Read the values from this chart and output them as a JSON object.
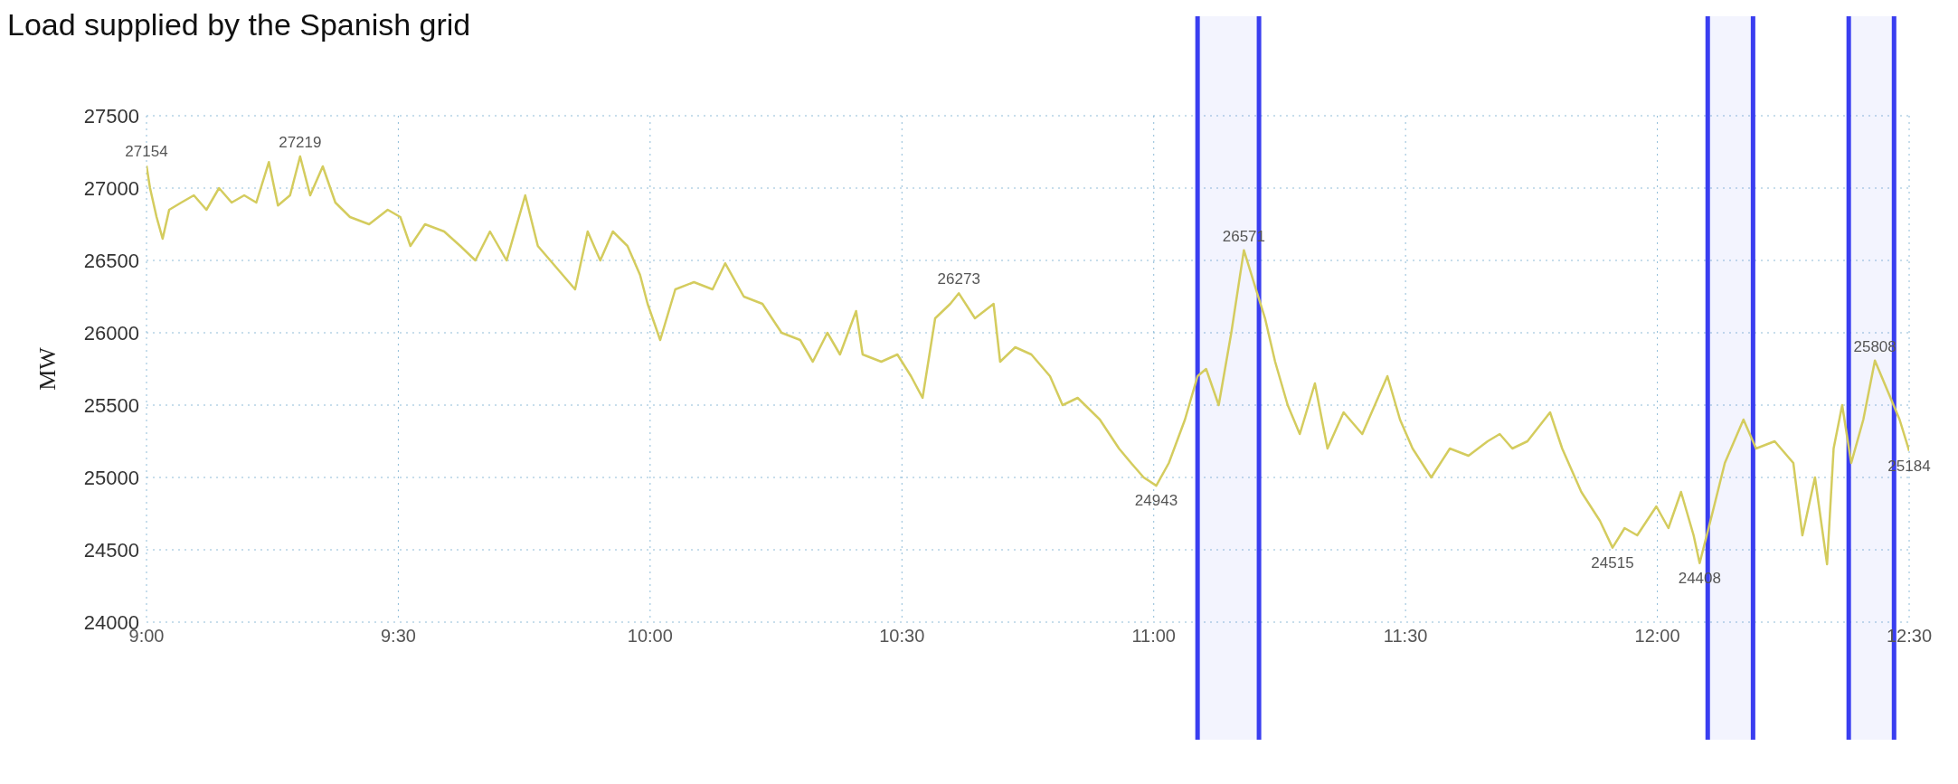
{
  "chart_data": {
    "type": "line",
    "title": "Load supplied by the Spanish grid",
    "ylabel": "MW",
    "x": [
      9.0,
      9.007,
      9.02,
      9.032,
      9.045,
      9.069,
      9.094,
      9.119,
      9.144,
      9.169,
      9.194,
      9.218,
      9.243,
      9.261,
      9.285,
      9.305,
      9.325,
      9.35,
      9.375,
      9.404,
      9.442,
      9.479,
      9.504,
      9.524,
      9.553,
      9.591,
      9.623,
      9.653,
      9.682,
      9.715,
      9.752,
      9.777,
      9.814,
      9.851,
      9.876,
      9.901,
      9.926,
      9.955,
      9.98,
      9.995,
      10.02,
      10.05,
      10.087,
      10.124,
      10.149,
      10.186,
      10.223,
      10.261,
      10.298,
      10.323,
      10.352,
      10.377,
      10.409,
      10.422,
      10.459,
      10.491,
      10.518,
      10.541,
      10.566,
      10.596,
      10.613,
      10.645,
      10.682,
      10.695,
      10.725,
      10.757,
      10.794,
      10.819,
      10.849,
      10.893,
      10.931,
      10.955,
      10.98,
      11.005,
      11.03,
      11.062,
      11.087,
      11.104,
      11.129,
      11.154,
      11.179,
      11.203,
      11.221,
      11.241,
      11.266,
      11.29,
      11.32,
      11.345,
      11.377,
      11.414,
      11.439,
      11.464,
      11.489,
      11.514,
      11.551,
      11.588,
      11.625,
      11.663,
      11.687,
      11.712,
      11.742,
      11.787,
      11.811,
      11.849,
      11.886,
      11.911,
      11.935,
      11.96,
      11.998,
      12.022,
      12.047,
      12.072,
      12.084,
      12.109,
      12.134,
      12.171,
      12.196,
      12.233,
      12.27,
      12.288,
      12.313,
      12.337,
      12.35,
      12.367,
      12.385,
      12.409,
      12.432,
      12.457,
      12.481,
      12.5
    ],
    "series": [
      {
        "color": "#d4cc5e",
        "values": [
          27154,
          27000,
          26800,
          26650,
          26850,
          26900,
          26950,
          26850,
          27000,
          26900,
          26950,
          26900,
          27180,
          26880,
          26950,
          27219,
          26950,
          27150,
          26900,
          26800,
          26750,
          26850,
          26800,
          26600,
          26750,
          26700,
          26600,
          26500,
          26700,
          26500,
          26950,
          26600,
          26450,
          26300,
          26700,
          26500,
          26700,
          26600,
          26400,
          26200,
          25950,
          26300,
          26350,
          26300,
          26480,
          26250,
          26200,
          26000,
          25950,
          25800,
          26000,
          25850,
          26150,
          25850,
          25800,
          25850,
          25700,
          25550,
          26100,
          26200,
          26273,
          26100,
          26200,
          25800,
          25900,
          25850,
          25700,
          25500,
          25550,
          25400,
          25200,
          25100,
          25000,
          24943,
          25100,
          25400,
          25700,
          25750,
          25500,
          26000,
          26571,
          26300,
          26100,
          25800,
          25500,
          25300,
          25650,
          25200,
          25450,
          25300,
          25500,
          25700,
          25400,
          25200,
          25000,
          25200,
          25150,
          25250,
          25300,
          25200,
          25250,
          25450,
          25200,
          24900,
          24700,
          24515,
          24650,
          24600,
          24800,
          24650,
          24900,
          24600,
          24408,
          24750,
          25100,
          25400,
          25200,
          25250,
          25100,
          24600,
          25000,
          24400,
          25200,
          25500,
          25100,
          25400,
          25808,
          25600,
          25400,
          25184
        ]
      }
    ],
    "xlim": [
      9,
      12.5
    ],
    "xticks": [
      {
        "value": 9,
        "label": "9:00"
      },
      {
        "value": 9.5,
        "label": "9:30"
      },
      {
        "value": 10,
        "label": "10:00"
      },
      {
        "value": 10.5,
        "label": "10:30"
      },
      {
        "value": 11,
        "label": "11:00"
      },
      {
        "value": 11.5,
        "label": "11:30"
      },
      {
        "value": 12,
        "label": "12:00"
      },
      {
        "value": 12.5,
        "label": "12:30"
      }
    ],
    "ylim": [
      24000,
      27500
    ],
    "yticks": [
      24000,
      24500,
      25000,
      25500,
      26000,
      26500,
      27000,
      27500
    ],
    "grid": true,
    "marker": "none",
    "line_style": "solid",
    "legend": false,
    "annotations": [
      {
        "text": "27154",
        "x": 9.0,
        "y": 27154
      },
      {
        "text": "27219",
        "x": 9.305,
        "y": 27219
      },
      {
        "text": "26273",
        "x": 10.613,
        "y": 26273
      },
      {
        "text": "24943",
        "x": 11.005,
        "y": 24943
      },
      {
        "text": "26571",
        "x": 11.179,
        "y": 26571
      },
      {
        "text": "24515",
        "x": 11.911,
        "y": 24515
      },
      {
        "text": "24408",
        "x": 12.084,
        "y": 24408
      },
      {
        "text": "25808",
        "x": 12.432,
        "y": 25808
      },
      {
        "text": "25184",
        "x": 12.5,
        "y": 25184
      }
    ],
    "bands": [
      {
        "axis": "x",
        "from": 11.087,
        "to": 11.209,
        "color": "#3a3ef0"
      },
      {
        "axis": "x",
        "from": 12.1,
        "to": 12.19,
        "color": "#3a3ef0"
      },
      {
        "axis": "x",
        "from": 12.38,
        "to": 12.47,
        "color": "#3a3ef0"
      }
    ]
  }
}
